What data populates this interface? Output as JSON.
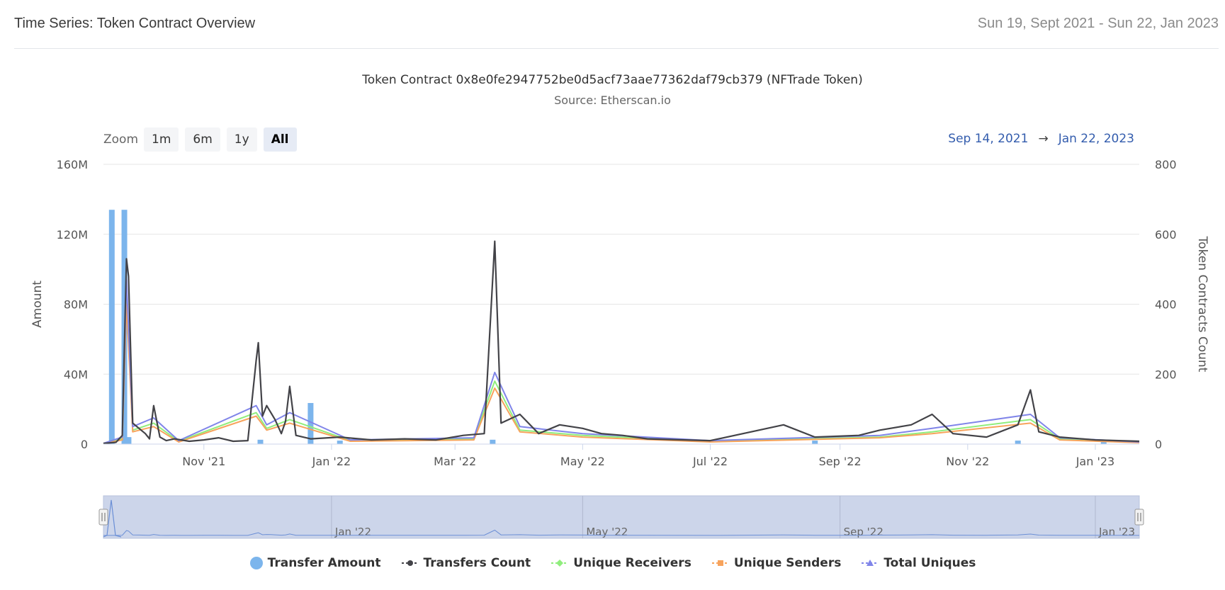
{
  "header": {
    "title": "Time Series: Token Contract Overview",
    "date_range": "Sun 19, Sept 2021 - Sun 22, Jan 2023"
  },
  "zoom": {
    "label": "Zoom",
    "buttons": [
      "1m",
      "6m",
      "1y",
      "All"
    ],
    "active": "All"
  },
  "range_selector": {
    "from": "Sep 14, 2021",
    "arrow": "→",
    "to": "Jan 22, 2023"
  },
  "colors": {
    "transfer_amount": "#7cb5ec",
    "transfers_count": "#434348",
    "unique_receivers": "#90ed7d",
    "unique_senders": "#f7a35c",
    "total_uniques": "#8085e9"
  },
  "chart_data": {
    "type": "bar",
    "title": "Token Contract 0x8e0fe2947752be0d5acf73aae77362daf79cb379 (NFTrade Token)",
    "subtitle": "Source: Etherscan.io",
    "x_axis": {
      "type": "datetime",
      "range": [
        "2021-09-14",
        "2023-01-22"
      ],
      "tick_labels": [
        "Nov '21",
        "Jan '22",
        "Mar '22",
        "May '22",
        "Jul '22",
        "Sep '22",
        "Nov '22",
        "Jan '23"
      ]
    },
    "y_axis_left": {
      "label": "Amount",
      "range": [
        0,
        160000000
      ],
      "tick_labels": [
        "0",
        "40M",
        "80M",
        "120M",
        "160M"
      ]
    },
    "y_axis_right": {
      "label": "Token Contracts Count",
      "range": [
        0,
        800
      ],
      "tick_labels": [
        "0",
        "200",
        "400",
        "600",
        "800"
      ]
    },
    "navigator": {
      "tick_labels": [
        "Jan '22",
        "May '22",
        "Sep '22",
        "Jan '23"
      ]
    },
    "legend": [
      "Transfer Amount",
      "Transfers Count",
      "Unique Receivers",
      "Unique Senders",
      "Total Uniques"
    ],
    "series": [
      {
        "name": "Transfer Amount",
        "axis": "left",
        "kind": "column",
        "points": [
          [
            "2021-09-18",
            134000000
          ],
          [
            "2021-09-24",
            134000000
          ],
          [
            "2021-09-26",
            4000000
          ],
          [
            "2021-11-28",
            2500000
          ],
          [
            "2021-12-22",
            23500000
          ],
          [
            "2022-01-05",
            2000000
          ],
          [
            "2022-03-19",
            2500000
          ],
          [
            "2022-08-20",
            2000000
          ],
          [
            "2022-11-25",
            2000000
          ],
          [
            "2023-01-05",
            2500000
          ]
        ]
      },
      {
        "name": "Transfers Count",
        "axis": "right",
        "kind": "line",
        "points": [
          [
            "2021-09-14",
            2
          ],
          [
            "2021-09-20",
            5
          ],
          [
            "2021-09-23",
            25
          ],
          [
            "2021-09-25",
            530
          ],
          [
            "2021-09-26",
            480
          ],
          [
            "2021-09-28",
            60
          ],
          [
            "2021-10-01",
            45
          ],
          [
            "2021-10-04",
            30
          ],
          [
            "2021-10-06",
            15
          ],
          [
            "2021-10-08",
            110
          ],
          [
            "2021-10-11",
            20
          ],
          [
            "2021-10-14",
            10
          ],
          [
            "2021-10-18",
            15
          ],
          [
            "2021-10-25",
            8
          ],
          [
            "2021-11-01",
            12
          ],
          [
            "2021-11-08",
            18
          ],
          [
            "2021-11-15",
            8
          ],
          [
            "2021-11-22",
            10
          ],
          [
            "2021-11-26",
            240
          ],
          [
            "2021-11-27",
            290
          ],
          [
            "2021-11-29",
            80
          ],
          [
            "2021-12-01",
            110
          ],
          [
            "2021-12-03",
            90
          ],
          [
            "2021-12-05",
            70
          ],
          [
            "2021-12-08",
            30
          ],
          [
            "2021-12-10",
            65
          ],
          [
            "2021-12-12",
            165
          ],
          [
            "2021-12-15",
            25
          ],
          [
            "2021-12-22",
            15
          ],
          [
            "2022-01-05",
            20
          ],
          [
            "2022-01-20",
            12
          ],
          [
            "2022-02-05",
            15
          ],
          [
            "2022-02-20",
            12
          ],
          [
            "2022-03-05",
            25
          ],
          [
            "2022-03-15",
            30
          ],
          [
            "2022-03-20",
            580
          ],
          [
            "2022-03-23",
            60
          ],
          [
            "2022-04-01",
            85
          ],
          [
            "2022-04-10",
            30
          ],
          [
            "2022-04-20",
            55
          ],
          [
            "2022-05-01",
            45
          ],
          [
            "2022-05-10",
            30
          ],
          [
            "2022-05-20",
            25
          ],
          [
            "2022-06-01",
            15
          ],
          [
            "2022-07-01",
            10
          ],
          [
            "2022-08-05",
            55
          ],
          [
            "2022-08-20",
            20
          ],
          [
            "2022-09-10",
            25
          ],
          [
            "2022-09-20",
            40
          ],
          [
            "2022-10-05",
            55
          ],
          [
            "2022-10-15",
            85
          ],
          [
            "2022-10-25",
            30
          ],
          [
            "2022-11-10",
            20
          ],
          [
            "2022-11-25",
            55
          ],
          [
            "2022-12-01",
            155
          ],
          [
            "2022-12-05",
            35
          ],
          [
            "2022-12-15",
            20
          ],
          [
            "2023-01-01",
            12
          ],
          [
            "2023-01-22",
            8
          ]
        ]
      },
      {
        "name": "Unique Receivers",
        "axis": "right",
        "kind": "line",
        "points": [
          [
            "2021-09-14",
            1
          ],
          [
            "2021-09-23",
            15
          ],
          [
            "2021-09-25",
            420
          ],
          [
            "2021-09-28",
            40
          ],
          [
            "2021-10-08",
            60
          ],
          [
            "2021-10-20",
            8
          ],
          [
            "2021-11-26",
            90
          ],
          [
            "2021-12-01",
            45
          ],
          [
            "2021-12-12",
            70
          ],
          [
            "2022-01-10",
            10
          ],
          [
            "2022-03-10",
            15
          ],
          [
            "2022-03-20",
            180
          ],
          [
            "2022-04-01",
            40
          ],
          [
            "2022-05-01",
            25
          ],
          [
            "2022-07-01",
            8
          ],
          [
            "2022-09-20",
            20
          ],
          [
            "2022-10-15",
            35
          ],
          [
            "2022-12-01",
            70
          ],
          [
            "2022-12-15",
            15
          ],
          [
            "2023-01-22",
            5
          ]
        ]
      },
      {
        "name": "Unique Senders",
        "axis": "right",
        "kind": "line",
        "points": [
          [
            "2021-09-14",
            1
          ],
          [
            "2021-09-23",
            12
          ],
          [
            "2021-09-25",
            400
          ],
          [
            "2021-09-28",
            35
          ],
          [
            "2021-10-08",
            50
          ],
          [
            "2021-10-20",
            6
          ],
          [
            "2021-11-26",
            80
          ],
          [
            "2021-12-01",
            40
          ],
          [
            "2021-12-12",
            60
          ],
          [
            "2022-01-10",
            8
          ],
          [
            "2022-03-10",
            12
          ],
          [
            "2022-03-20",
            160
          ],
          [
            "2022-04-01",
            35
          ],
          [
            "2022-05-01",
            20
          ],
          [
            "2022-07-01",
            6
          ],
          [
            "2022-09-20",
            18
          ],
          [
            "2022-10-15",
            30
          ],
          [
            "2022-12-01",
            60
          ],
          [
            "2022-12-15",
            12
          ],
          [
            "2023-01-22",
            4
          ]
        ]
      },
      {
        "name": "Total Uniques",
        "axis": "right",
        "kind": "line",
        "points": [
          [
            "2021-09-14",
            2
          ],
          [
            "2021-09-23",
            20
          ],
          [
            "2021-09-25",
            470
          ],
          [
            "2021-09-28",
            50
          ],
          [
            "2021-10-08",
            75
          ],
          [
            "2021-10-20",
            10
          ],
          [
            "2021-11-26",
            110
          ],
          [
            "2021-12-01",
            55
          ],
          [
            "2021-12-12",
            90
          ],
          [
            "2022-01-10",
            12
          ],
          [
            "2022-03-10",
            18
          ],
          [
            "2022-03-20",
            205
          ],
          [
            "2022-04-01",
            50
          ],
          [
            "2022-05-01",
            30
          ],
          [
            "2022-07-01",
            10
          ],
          [
            "2022-09-20",
            25
          ],
          [
            "2022-10-15",
            45
          ],
          [
            "2022-12-01",
            85
          ],
          [
            "2022-12-15",
            18
          ],
          [
            "2023-01-22",
            6
          ]
        ]
      }
    ]
  }
}
